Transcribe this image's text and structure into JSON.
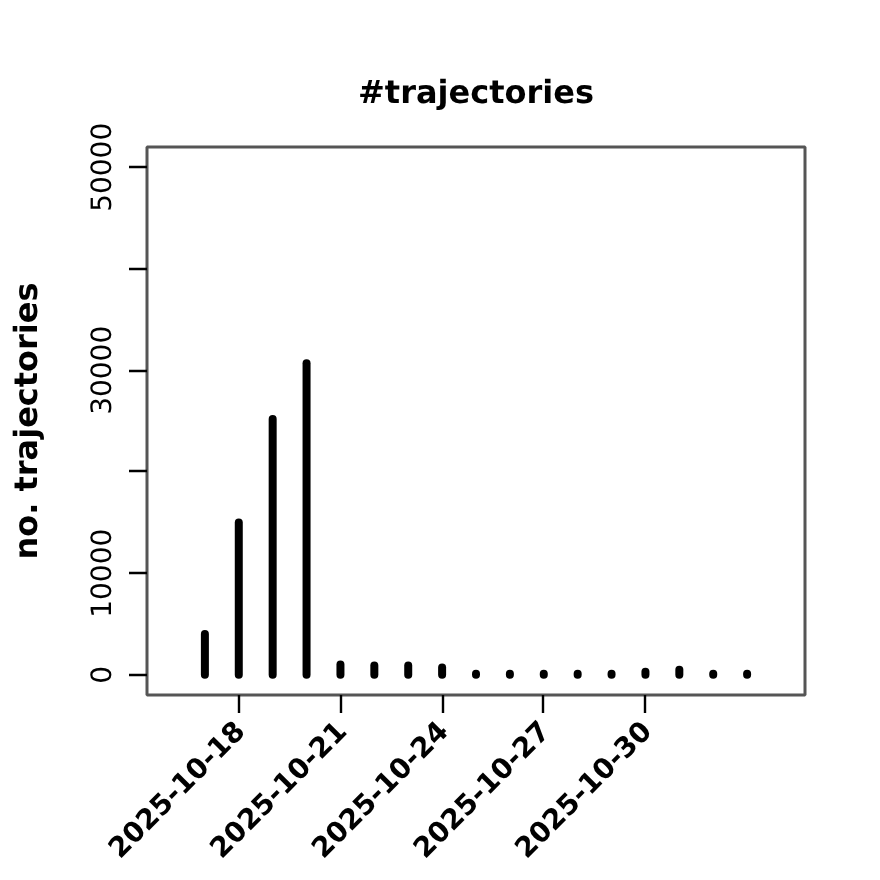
{
  "chart_data": {
    "type": "bar",
    "title": "#trajectories",
    "ylabel": "no. trajectories",
    "x": [
      "2025-10-17",
      "2025-10-18",
      "2025-10-19",
      "2025-10-20",
      "2025-10-21",
      "2025-10-22",
      "2025-10-23",
      "2025-10-24",
      "2025-10-25",
      "2025-10-26",
      "2025-10-27",
      "2025-10-28",
      "2025-10-29",
      "2025-10-30",
      "2025-10-31",
      "2025-11-01",
      "2025-11-02"
    ],
    "values": [
      4000,
      15000,
      25200,
      30700,
      1000,
      900,
      900,
      700,
      100,
      100,
      100,
      100,
      100,
      300,
      500,
      100,
      100
    ],
    "color": "#000000",
    "xlim": [
      "2025-10-15T07:00",
      "2025-11-03T17:00"
    ],
    "xticks": [
      "2025-10-18",
      "2025-10-21",
      "2025-10-24",
      "2025-10-27",
      "2025-10-30"
    ],
    "ylim": [
      -2000,
      52000
    ],
    "yticks": [
      0,
      10000,
      {
        "value": 20000,
        "label": null
      },
      30000,
      {
        "value": 40000,
        "label": null
      },
      50000
    ]
  }
}
